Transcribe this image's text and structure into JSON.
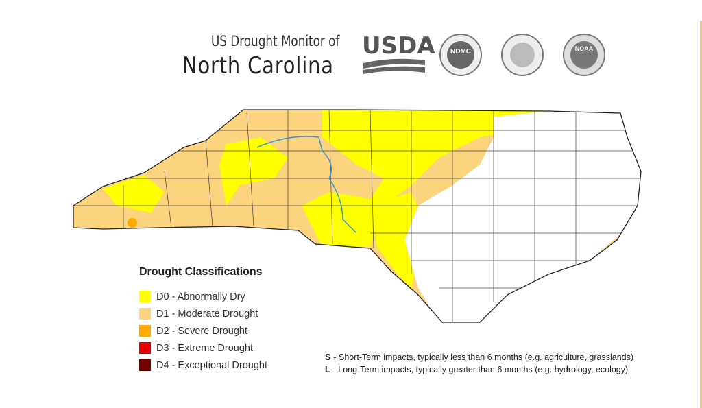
{
  "header": {
    "title_top": "US Drought Monitor of",
    "title_main": "North Carolina",
    "logos": [
      "USDA",
      "NDMC",
      "NOAA"
    ]
  },
  "legend": {
    "title": "Drought Classifications",
    "items": [
      {
        "label": "D0 - Abnormally Dry",
        "color": "#ffff00"
      },
      {
        "label": "D1 - Moderate Drought",
        "color": "#fcd37f"
      },
      {
        "label": "D2 - Severe Drought",
        "color": "#ffaa00"
      },
      {
        "label": "D3 - Extreme Drought",
        "color": "#e60000"
      },
      {
        "label": "D4 - Exceptional Drought",
        "color": "#730000"
      }
    ]
  },
  "notes": [
    {
      "key": "S",
      "text": "- Short-Term impacts, typically less than 6 months (e.g. agriculture, grasslands)"
    },
    {
      "key": "L",
      "text": "- Long-Term impacts, typically greater than 6 months (e.g. hydrology, ecology)"
    }
  ]
}
